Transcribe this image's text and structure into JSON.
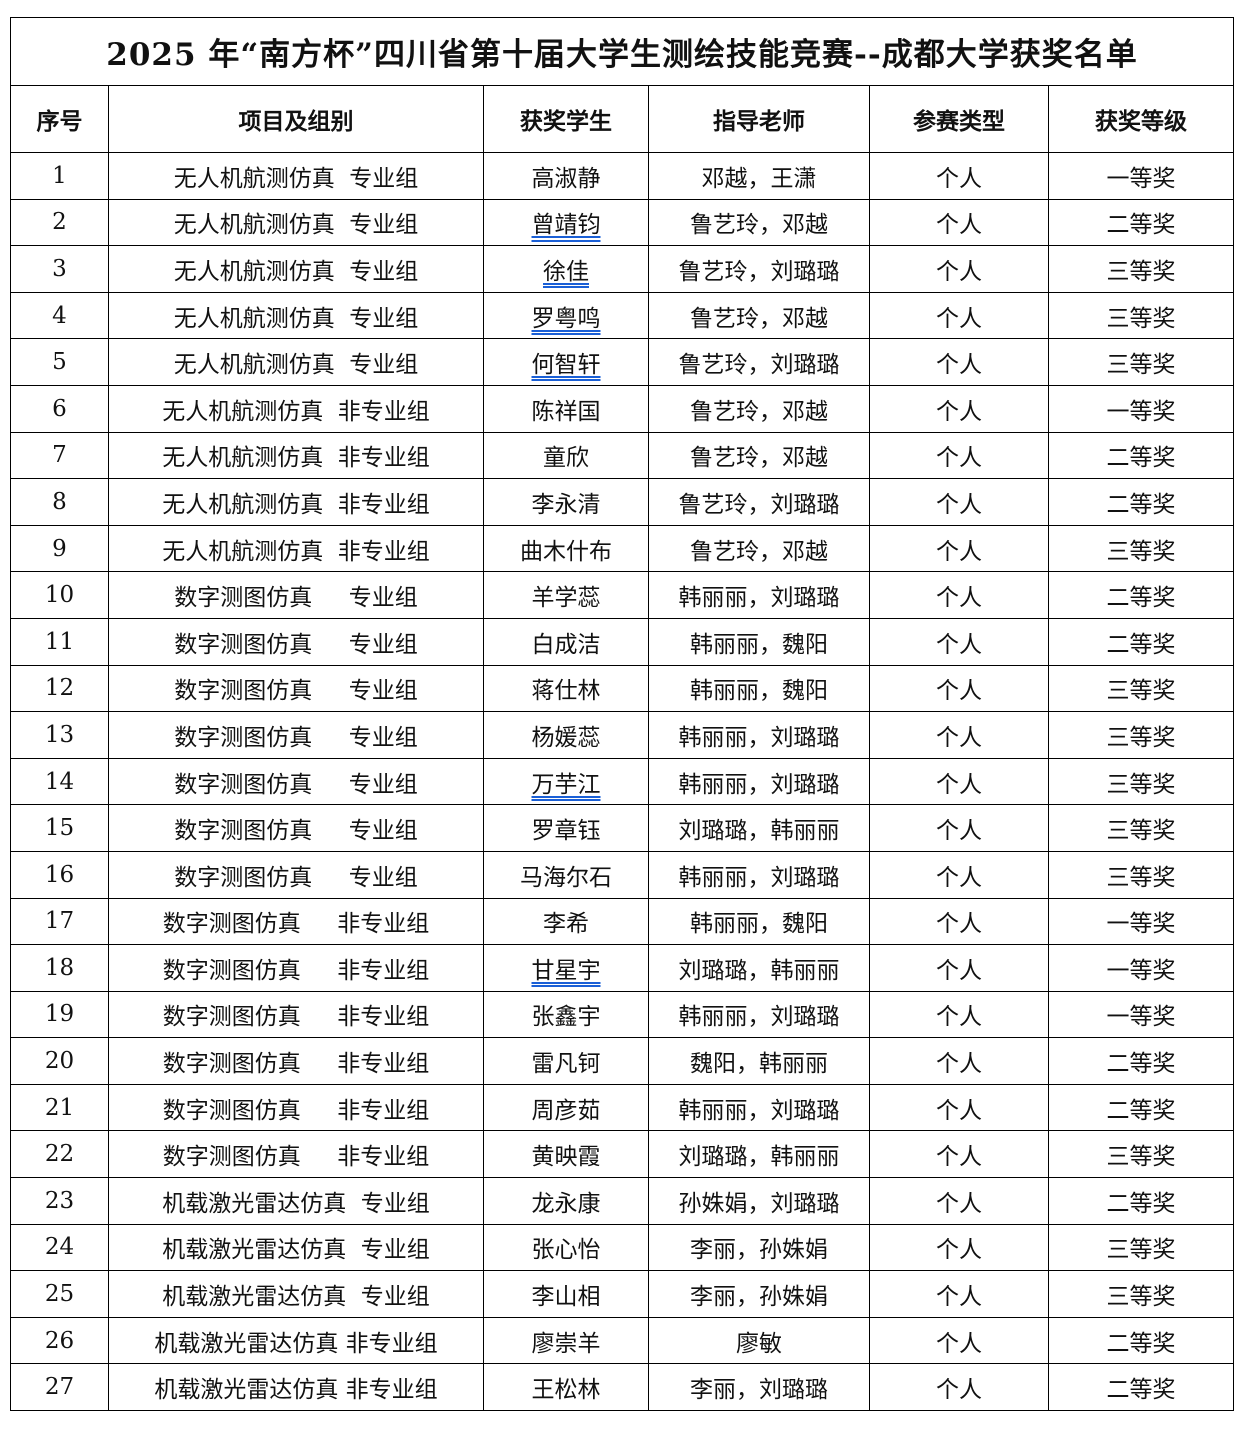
{
  "title": "2025 年“南方杯”四川省第十届大学生测绘技能竞赛--成都大学获奖名单",
  "columns": [
    "序号",
    "项目及组别",
    "获奖学生",
    "指导老师",
    "参赛类型",
    "获奖等级"
  ],
  "rows": [
    {
      "no": "1",
      "project": "无人机航测仿真  专业组",
      "student": "高淑静",
      "teacher": "邓越，王潇",
      "type": "个人",
      "award": "一等奖"
    },
    {
      "no": "2",
      "project": "无人机航测仿真  专业组",
      "student": "曾靖钧",
      "teacher": "鲁艺玲，邓越",
      "type": "个人",
      "award": "二等奖",
      "underline": true
    },
    {
      "no": "3",
      "project": "无人机航测仿真  专业组",
      "student": "徐佳",
      "teacher": "鲁艺玲，刘璐璐",
      "type": "个人",
      "award": "三等奖",
      "underline": true
    },
    {
      "no": "4",
      "project": "无人机航测仿真  专业组",
      "student": "罗粤鸣",
      "teacher": "鲁艺玲，邓越",
      "type": "个人",
      "award": "三等奖",
      "underline": true
    },
    {
      "no": "5",
      "project": "无人机航测仿真  专业组",
      "student": "何智轩",
      "teacher": "鲁艺玲，刘璐璐",
      "type": "个人",
      "award": "三等奖",
      "underline": true
    },
    {
      "no": "6",
      "project": "无人机航测仿真  非专业组",
      "student": "陈祥国",
      "teacher": "鲁艺玲，邓越",
      "type": "个人",
      "award": "一等奖"
    },
    {
      "no": "7",
      "project": "无人机航测仿真  非专业组",
      "student": "童欣",
      "teacher": "鲁艺玲，邓越",
      "type": "个人",
      "award": "二等奖"
    },
    {
      "no": "8",
      "project": "无人机航测仿真  非专业组",
      "student": "李永清",
      "teacher": "鲁艺玲，刘璐璐",
      "type": "个人",
      "award": "二等奖"
    },
    {
      "no": "9",
      "project": "无人机航测仿真  非专业组",
      "student": "曲木什布",
      "teacher": "鲁艺玲，邓越",
      "type": "个人",
      "award": "三等奖"
    },
    {
      "no": "10",
      "project": "数字测图仿真     专业组",
      "student": "羊学蕊",
      "teacher": "韩丽丽，刘璐璐",
      "type": "个人",
      "award": "二等奖"
    },
    {
      "no": "11",
      "project": "数字测图仿真     专业组",
      "student": "白成洁",
      "teacher": "韩丽丽，魏阳",
      "type": "个人",
      "award": "二等奖"
    },
    {
      "no": "12",
      "project": "数字测图仿真     专业组",
      "student": "蒋仕林",
      "teacher": "韩丽丽，魏阳",
      "type": "个人",
      "award": "三等奖"
    },
    {
      "no": "13",
      "project": "数字测图仿真     专业组",
      "student": "杨媛蕊",
      "teacher": "韩丽丽，刘璐璐",
      "type": "个人",
      "award": "三等奖"
    },
    {
      "no": "14",
      "project": "数字测图仿真     专业组",
      "student": "万芋江",
      "teacher": "韩丽丽，刘璐璐",
      "type": "个人",
      "award": "三等奖",
      "underline": true
    },
    {
      "no": "15",
      "project": "数字测图仿真     专业组",
      "student": "罗章钰",
      "teacher": "刘璐璐，韩丽丽",
      "type": "个人",
      "award": "三等奖"
    },
    {
      "no": "16",
      "project": "数字测图仿真     专业组",
      "student": "马海尔石",
      "teacher": "韩丽丽，刘璐璐",
      "type": "个人",
      "award": "三等奖"
    },
    {
      "no": "17",
      "project": "数字测图仿真     非专业组",
      "student": "李希",
      "teacher": "韩丽丽，魏阳",
      "type": "个人",
      "award": "一等奖"
    },
    {
      "no": "18",
      "project": "数字测图仿真     非专业组",
      "student": "甘星宇",
      "teacher": "刘璐璐，韩丽丽",
      "type": "个人",
      "award": "一等奖",
      "underline": true
    },
    {
      "no": "19",
      "project": "数字测图仿真     非专业组",
      "student": "张鑫宇",
      "teacher": "韩丽丽，刘璐璐",
      "type": "个人",
      "award": "一等奖"
    },
    {
      "no": "20",
      "project": "数字测图仿真     非专业组",
      "student": "雷凡钶",
      "teacher": "魏阳，韩丽丽",
      "type": "个人",
      "award": "二等奖"
    },
    {
      "no": "21",
      "project": "数字测图仿真     非专业组",
      "student": "周彦茹",
      "teacher": "韩丽丽，刘璐璐",
      "type": "个人",
      "award": "二等奖"
    },
    {
      "no": "22",
      "project": "数字测图仿真     非专业组",
      "student": "黄映霞",
      "teacher": "刘璐璐，韩丽丽",
      "type": "个人",
      "award": "三等奖"
    },
    {
      "no": "23",
      "project": "机载激光雷达仿真  专业组",
      "student": "龙永康",
      "teacher": "孙姝娟，刘璐璐",
      "type": "个人",
      "award": "二等奖"
    },
    {
      "no": "24",
      "project": "机载激光雷达仿真  专业组",
      "student": "张心怡",
      "teacher": "李丽，孙姝娟",
      "type": "个人",
      "award": "三等奖"
    },
    {
      "no": "25",
      "project": "机载激光雷达仿真  专业组",
      "student": "李山相",
      "teacher": "李丽，孙姝娟",
      "type": "个人",
      "award": "三等奖"
    },
    {
      "no": "26",
      "project": "机载激光雷达仿真 非专业组",
      "student": "廖崇羊",
      "teacher": "廖敏",
      "type": "个人",
      "award": "二等奖"
    },
    {
      "no": "27",
      "project": "机载激光雷达仿真 非专业组",
      "student": "王松林",
      "teacher": "李丽，刘璐璐",
      "type": "个人",
      "award": "二等奖"
    }
  ]
}
